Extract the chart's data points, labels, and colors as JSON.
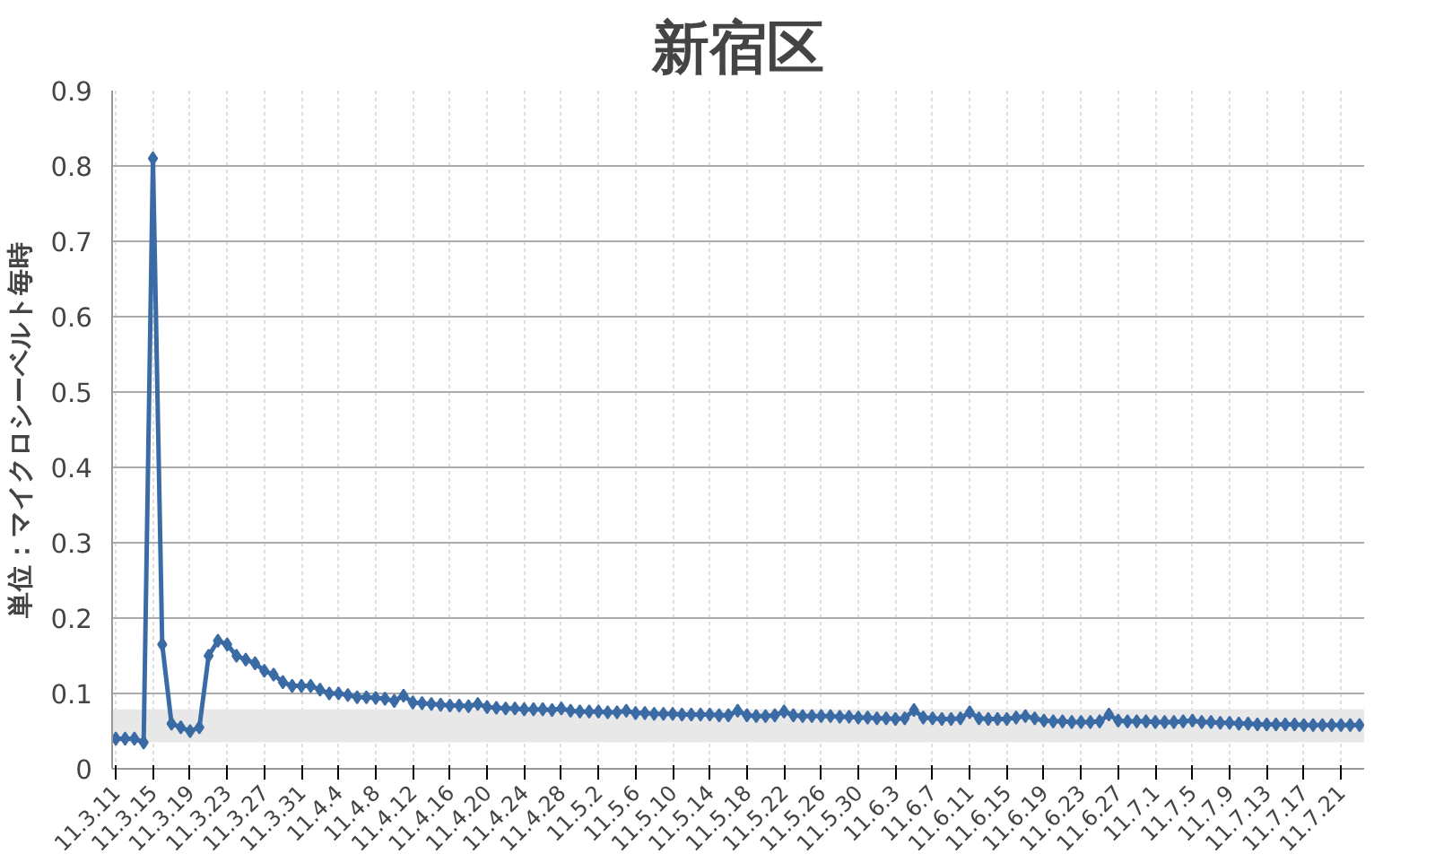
{
  "chart_data": {
    "type": "line",
    "title": "新宿区",
    "ylabel": "単位：マイクロシーベルト毎時",
    "categories": [
      "11.3.11",
      null,
      null,
      null,
      "11.3.15",
      null,
      null,
      null,
      "11.3.19",
      null,
      null,
      null,
      "11.3.23",
      null,
      null,
      null,
      "11.3.27",
      null,
      null,
      null,
      "11.3.31",
      null,
      null,
      null,
      "11.4.4",
      null,
      null,
      null,
      "11.4.8",
      null,
      null,
      null,
      "11.4.12",
      null,
      null,
      null,
      "11.4.16",
      null,
      null,
      null,
      "11.4.20",
      null,
      null,
      null,
      "11.4.24",
      null,
      null,
      null,
      "11.4.28",
      null,
      null,
      null,
      "11.5.2",
      null,
      null,
      null,
      "11.5.6",
      null,
      null,
      null,
      "11.5.10",
      null,
      null,
      null,
      "11.5.14",
      null,
      null,
      null,
      "11.5.18",
      null,
      null,
      null,
      "11.5.22",
      null,
      null,
      null,
      "11.5.26",
      null,
      null,
      null,
      "11.5.30",
      null,
      null,
      null,
      "11.6.3",
      null,
      null,
      null,
      "11.6.7",
      null,
      null,
      null,
      "11.6.11",
      null,
      null,
      null,
      "11.6.15",
      null,
      null,
      null,
      "11.6.19",
      null,
      null,
      null,
      "11.6.23",
      null,
      null,
      null,
      "11.6.27",
      null,
      null,
      null,
      "11.7.1",
      null,
      null,
      null,
      "11.7.5",
      null,
      null,
      null,
      "11.7.9",
      null,
      null,
      null,
      "11.7.13",
      null,
      null,
      null,
      "11.7.17",
      null,
      null,
      null,
      "11.7.21",
      null,
      null
    ],
    "series": [
      {
        "color": "#3b6ba5",
        "values": [
          0.04,
          0.04,
          0.04,
          0.035,
          0.81,
          0.165,
          0.06,
          0.055,
          0.05,
          0.055,
          0.15,
          0.17,
          0.165,
          0.15,
          0.145,
          0.14,
          0.13,
          0.125,
          0.115,
          0.11,
          0.11,
          0.11,
          0.105,
          0.1,
          0.1,
          0.098,
          0.095,
          0.095,
          0.094,
          0.093,
          0.09,
          0.097,
          0.088,
          0.087,
          0.086,
          0.085,
          0.084,
          0.084,
          0.083,
          0.086,
          0.082,
          0.081,
          0.08,
          0.08,
          0.079,
          0.079,
          0.079,
          0.078,
          0.08,
          0.077,
          0.076,
          0.076,
          0.076,
          0.075,
          0.075,
          0.077,
          0.074,
          0.074,
          0.073,
          0.073,
          0.073,
          0.072,
          0.072,
          0.072,
          0.072,
          0.071,
          0.071,
          0.077,
          0.071,
          0.07,
          0.07,
          0.071,
          0.076,
          0.071,
          0.07,
          0.07,
          0.07,
          0.07,
          0.069,
          0.069,
          0.068,
          0.068,
          0.067,
          0.067,
          0.066,
          0.067,
          0.078,
          0.068,
          0.067,
          0.066,
          0.066,
          0.067,
          0.075,
          0.067,
          0.066,
          0.066,
          0.066,
          0.068,
          0.07,
          0.067,
          0.064,
          0.063,
          0.063,
          0.062,
          0.062,
          0.062,
          0.063,
          0.072,
          0.064,
          0.063,
          0.063,
          0.063,
          0.062,
          0.062,
          0.062,
          0.063,
          0.064,
          0.062,
          0.062,
          0.061,
          0.061,
          0.06,
          0.06,
          0.059,
          0.059,
          0.059,
          0.059,
          0.059,
          0.058,
          0.058,
          0.058,
          0.058,
          0.058,
          0.058,
          0.058
        ]
      }
    ],
    "ylim": [
      0,
      0.9
    ],
    "yticks": [
      0,
      0.1,
      0.2,
      0.3,
      0.4,
      0.5,
      0.6,
      0.7,
      0.8,
      0.9
    ],
    "bands": [
      {
        "axis": "y",
        "from": 0.035,
        "to": 0.079,
        "color": "#e8e8e8"
      }
    ],
    "grid": true,
    "marker": "diamond",
    "line_style": "solid"
  }
}
